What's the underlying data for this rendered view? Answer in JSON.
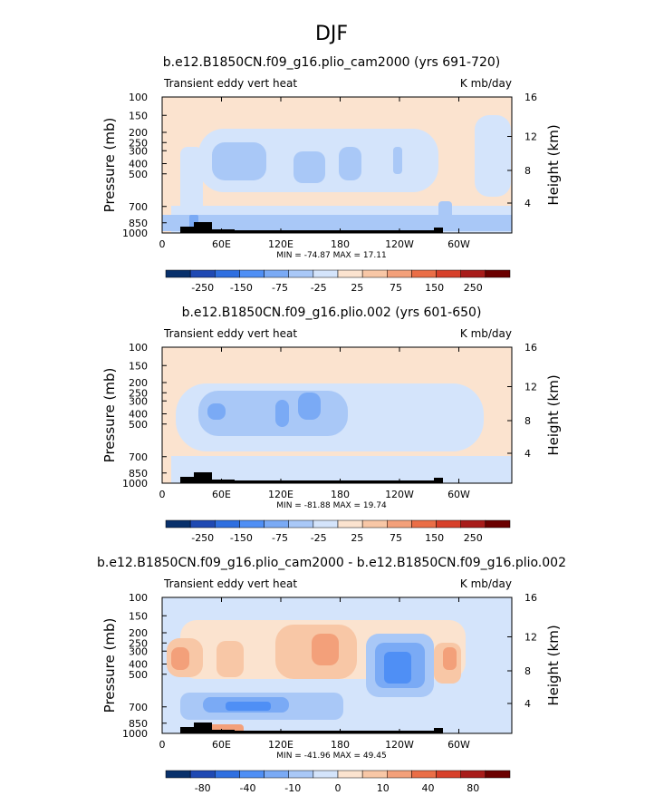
{
  "figure_title": "DJF",
  "colors": {
    "fill_scale": [
      "#08306b",
      "#1f49b3",
      "#2f6fe0",
      "#4f8ff5",
      "#7aaaf5",
      "#a9c8f7",
      "#d4e4fb",
      "#fbe3cf",
      "#f8c7a6",
      "#f3a07a",
      "#ea6e47",
      "#d7402a",
      "#a81c1a",
      "#6b0000"
    ]
  },
  "chart_data": [
    {
      "type": "contour",
      "title": "b.e12.B1850CN.f09_g16.plio_cam2000 (yrs 691-720)",
      "left_label": "Transient eddy vert heat",
      "units_label": "K mb/day",
      "ylabel": "Pressure (mb)",
      "ylabel_right": "Height (km)",
      "x_ticks": [
        "0",
        "60E",
        "120E",
        "180",
        "120W",
        "60W"
      ],
      "y_ticks": [
        "100",
        "150",
        "200",
        "250",
        "300",
        "400",
        "500",
        "700",
        "850",
        "1000"
      ],
      "y_ticks_right": [
        "16",
        "12",
        "8",
        "4"
      ],
      "stats": "MIN = -74.87   MAX =  17.11",
      "colorbar_labels": [
        "-250",
        "-150",
        "-75",
        "-25",
        "25",
        "75",
        "150",
        "250"
      ]
    },
    {
      "type": "contour",
      "title": "b.e12.B1850CN.f09_g16.plio.002 (yrs 601-650)",
      "left_label": "Transient eddy vert heat",
      "units_label": "K mb/day",
      "ylabel": "Pressure (mb)",
      "ylabel_right": "Height (km)",
      "x_ticks": [
        "0",
        "60E",
        "120E",
        "180",
        "120W",
        "60W"
      ],
      "y_ticks": [
        "100",
        "150",
        "200",
        "250",
        "300",
        "400",
        "500",
        "700",
        "850",
        "1000"
      ],
      "y_ticks_right": [
        "16",
        "12",
        "8",
        "4"
      ],
      "stats": "MIN = -81.88   MAX =  19.74",
      "colorbar_labels": [
        "-250",
        "-150",
        "-75",
        "-25",
        "25",
        "75",
        "150",
        "250"
      ]
    },
    {
      "type": "contour",
      "title": "b.e12.B1850CN.f09_g16.plio_cam2000 - b.e12.B1850CN.f09_g16.plio.002",
      "left_label": "Transient eddy vert heat",
      "units_label": "K mb/day",
      "ylabel": "Pressure (mb)",
      "ylabel_right": "Height (km)",
      "x_ticks": [
        "0",
        "60E",
        "120E",
        "180",
        "120W",
        "60W"
      ],
      "y_ticks": [
        "100",
        "150",
        "200",
        "250",
        "300",
        "400",
        "500",
        "700",
        "850",
        "1000"
      ],
      "y_ticks_right": [
        "16",
        "12",
        "8",
        "4"
      ],
      "stats": "MIN = -41.96   MAX =  49.45",
      "colorbar_labels": [
        "-80",
        "-40",
        "-10",
        "0",
        "10",
        "40",
        "80"
      ]
    }
  ]
}
